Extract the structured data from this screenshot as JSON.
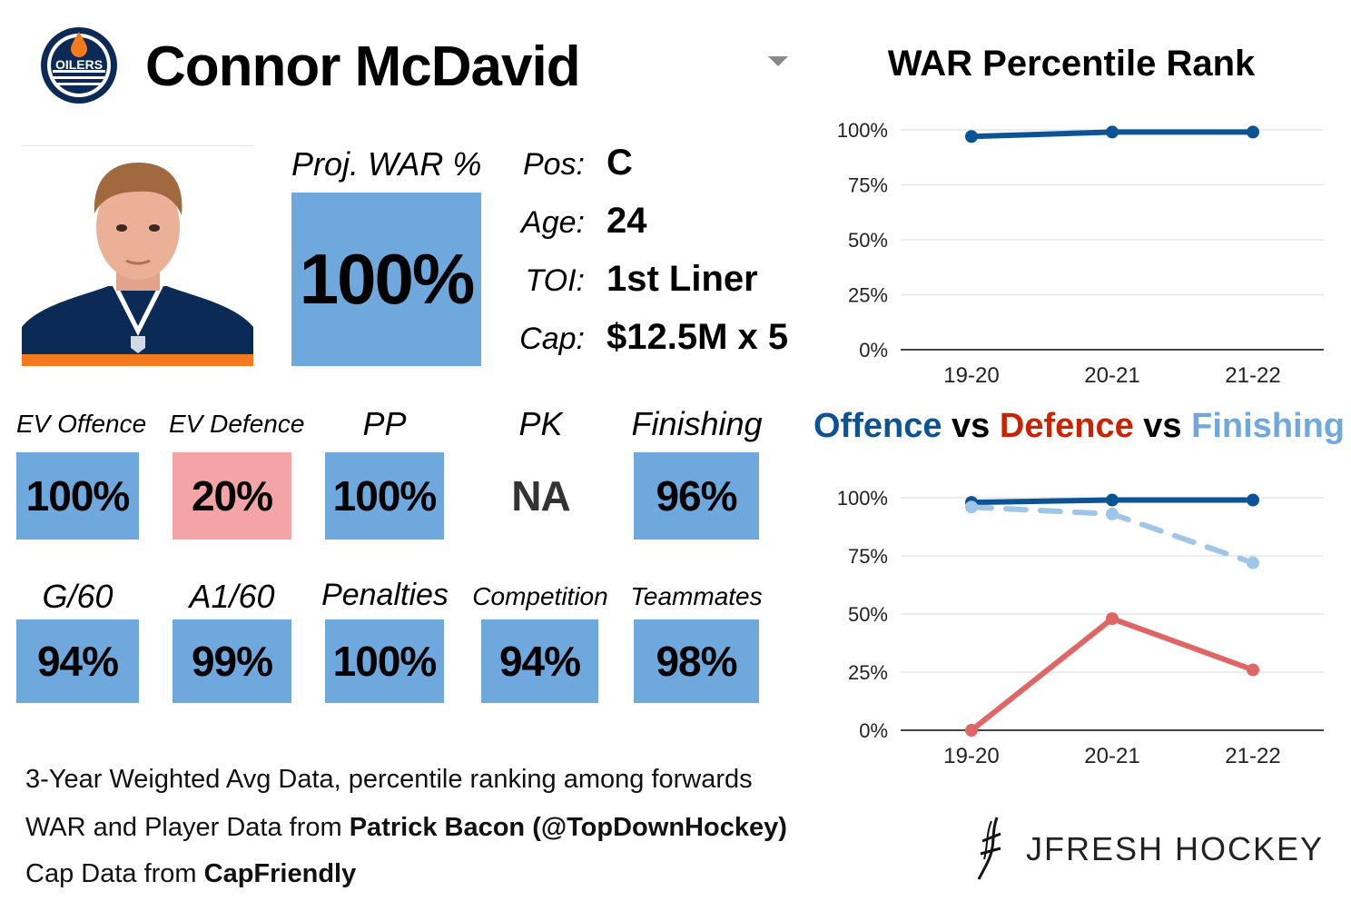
{
  "player": {
    "name": "Connor McDavid",
    "team_logo_text": "OILERS"
  },
  "projection": {
    "label": "Proj. WAR %",
    "value": "100%"
  },
  "info": [
    {
      "label": "Pos:",
      "value": "C"
    },
    {
      "label": "Age:",
      "value": "24"
    },
    {
      "label": "TOI:",
      "value": "1st Liner"
    },
    {
      "label": "Cap:",
      "value": "$12.5M x 5"
    }
  ],
  "stats_row1": [
    {
      "label": "EV Offence",
      "value": "100%",
      "color": "#6fa8dc"
    },
    {
      "label": "EV Defence",
      "value": "20%",
      "color": "#f4a3a7"
    },
    {
      "label": "PP",
      "value": "100%",
      "color": "#6fa8dc"
    },
    {
      "label": "PK",
      "value": "NA",
      "color": ""
    },
    {
      "label": "Finishing",
      "value": "96%",
      "color": "#6fa8dc"
    }
  ],
  "stats_row2": [
    {
      "label": "G/60",
      "value": "94%",
      "color": "#6fa8dc"
    },
    {
      "label": "A1/60",
      "value": "99%",
      "color": "#6fa8dc"
    },
    {
      "label": "Penalties",
      "value": "100%",
      "color": "#6fa8dc"
    },
    {
      "label": "Competition",
      "value": "94%",
      "color": "#6fa8dc"
    },
    {
      "label": "Teammates",
      "value": "98%",
      "color": "#6fa8dc"
    }
  ],
  "footer": {
    "line1": "3-Year Weighted Avg Data, percentile ranking among forwards",
    "line2_prefix": "WAR and Player Data from ",
    "line2_bold": "Patrick Bacon (@TopDownHockey)",
    "line3_prefix": "Cap Data from ",
    "line3_bold": "CapFriendly"
  },
  "brand": {
    "text": "JFRESH HOCKEY"
  },
  "colors": {
    "blue_box": "#6fa8dc",
    "red_box": "#f4a3a7",
    "offence": "#0b5394",
    "defence": "#e06666",
    "finishing": "#9fc5e8",
    "title_offence": "#0b5394",
    "title_defence": "#cc2200",
    "title_finishing": "#6fa8dc"
  },
  "chart_data": [
    {
      "type": "line",
      "title": "WAR Percentile Rank",
      "categories": [
        "19-20",
        "20-21",
        "21-22"
      ],
      "series": [
        {
          "values": [
            97,
            99,
            99
          ],
          "color": "#0b5394",
          "dashed": false
        }
      ],
      "ylim": [
        0,
        100
      ],
      "yticks": [
        "0%",
        "25%",
        "50%",
        "75%",
        "100%"
      ],
      "grid": true
    },
    {
      "type": "line",
      "title_parts": [
        "Offence",
        "vs",
        "Defence",
        "vs",
        "Finishing"
      ],
      "categories": [
        "19-20",
        "20-21",
        "21-22"
      ],
      "series": [
        {
          "values": [
            98,
            99,
            99
          ],
          "color": "#0b5394",
          "dashed": false
        },
        {
          "values": [
            96,
            93,
            72
          ],
          "color": "#9fc5e8",
          "dashed": true
        },
        {
          "values": [
            0,
            48,
            26
          ],
          "color": "#e06666",
          "dashed": false
        }
      ],
      "ylim": [
        0,
        100
      ],
      "yticks": [
        "0%",
        "25%",
        "50%",
        "75%",
        "100%"
      ],
      "grid": true
    }
  ]
}
